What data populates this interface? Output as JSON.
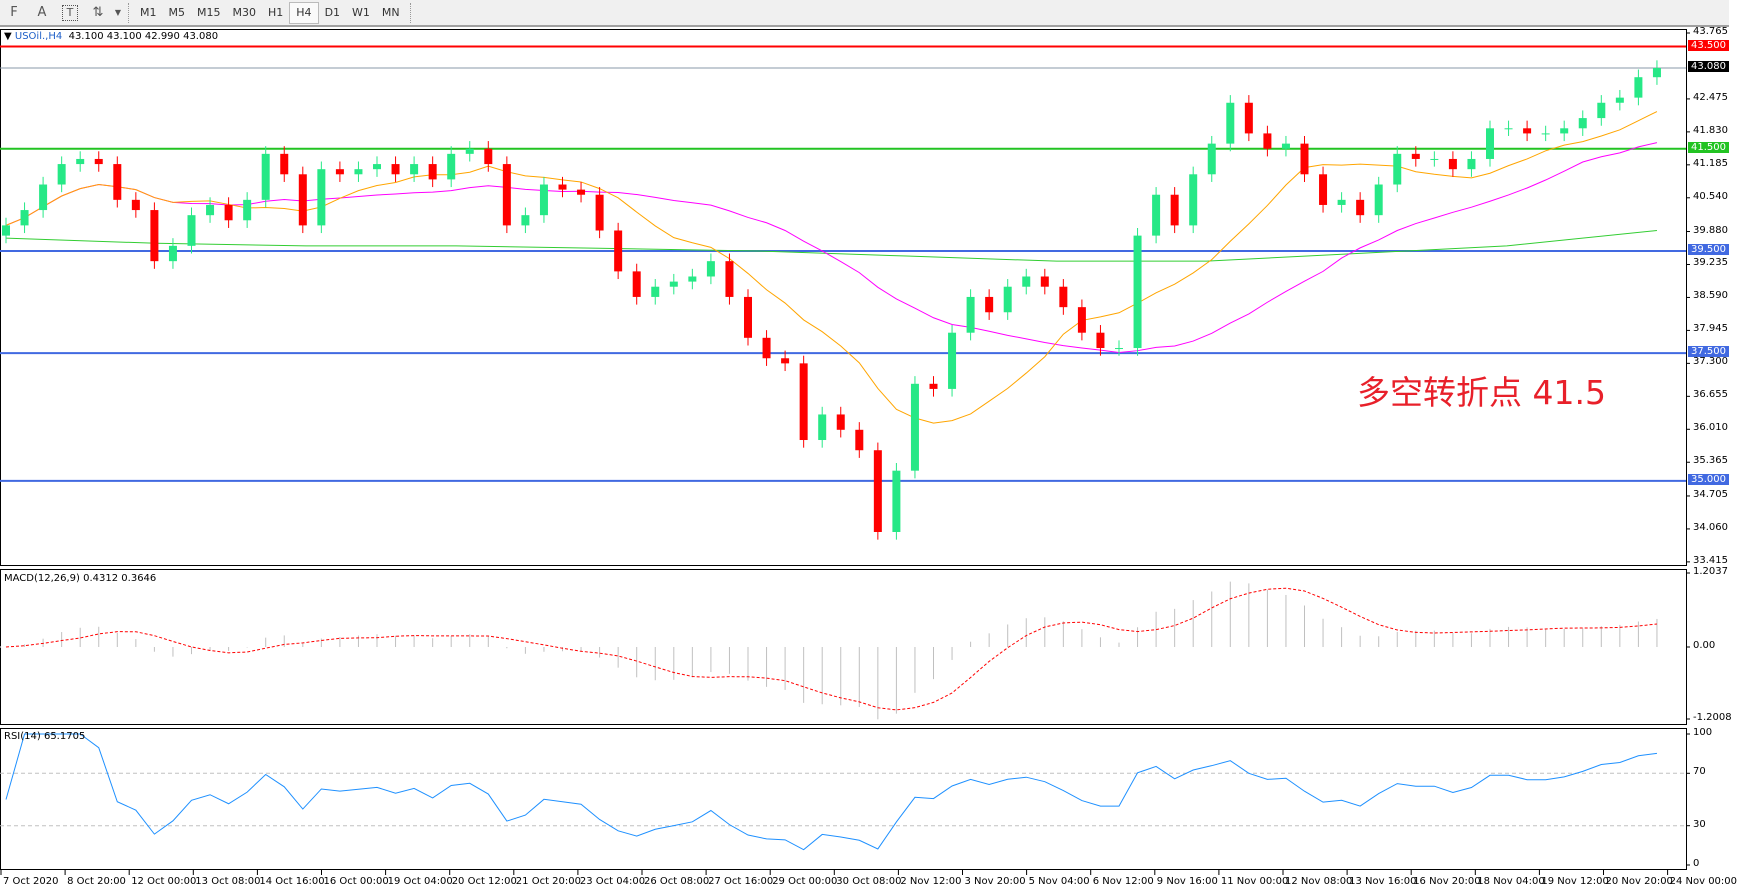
{
  "toolbar": {
    "tools": [
      {
        "name": "grid-f-icon",
        "glyph": "F"
      },
      {
        "name": "text-tool-icon",
        "glyph": "A"
      },
      {
        "name": "text-label-icon",
        "glyph": "T"
      },
      {
        "name": "arrows-tool-icon",
        "glyph": "⇅"
      }
    ],
    "timeframes": [
      "M1",
      "M5",
      "M15",
      "M30",
      "H1",
      "H4",
      "D1",
      "W1",
      "MN"
    ],
    "active_timeframe": "H4"
  },
  "main": {
    "symbol_label": "USOil.,H4",
    "ohlc": "43.100 43.100 42.990 43.080",
    "annotation": "多空转折点 41.5"
  },
  "macd": {
    "label": "MACD(12,26,9) 0.4312 0.3646",
    "scale": [
      "1.2037",
      "0.00",
      "-1.2008"
    ]
  },
  "rsi": {
    "label": "RSI(14) 65.1705",
    "scale": [
      "100",
      "70",
      "30",
      "0"
    ]
  },
  "colors": {
    "bull": "#26e886",
    "bear": "#ff0000",
    "ma_fast": "#ffa500",
    "ma_mid": "#ff00ff",
    "ma_long": "#32cd32",
    "rsi": "#1e90ff",
    "macd_signal": "#ff0000",
    "macd_hist": "#c0c0c0"
  },
  "chart_data": {
    "type": "candlestick",
    "ylim": [
      33.415,
      43.765
    ],
    "price_ticks": [
      "43.765",
      "42.475",
      "41.830",
      "41.185",
      "40.540",
      "39.880",
      "39.235",
      "38.590",
      "37.945",
      "37.300",
      "36.655",
      "36.010",
      "35.365",
      "34.705",
      "34.060",
      "33.415"
    ],
    "levels": [
      {
        "value": "43.500",
        "color": "#ff0000"
      },
      {
        "value": "43.080",
        "color": "#000000",
        "line": "#8a9aaa"
      },
      {
        "value": "41.500",
        "color": "#22c322"
      },
      {
        "value": "39.500",
        "color": "#4169e1"
      },
      {
        "value": "37.500",
        "color": "#4169e1"
      },
      {
        "value": "35.000",
        "color": "#4169e1"
      }
    ],
    "closes": [
      40.0,
      40.3,
      40.8,
      41.2,
      41.3,
      41.2,
      40.5,
      40.3,
      39.3,
      39.6,
      40.2,
      40.4,
      40.1,
      40.5,
      41.4,
      41.0,
      40.0,
      41.1,
      41.0,
      41.1,
      41.2,
      41.0,
      41.2,
      40.9,
      41.4,
      41.5,
      41.2,
      40.0,
      40.2,
      40.8,
      40.7,
      40.6,
      39.9,
      39.1,
      38.6,
      38.8,
      38.9,
      39.0,
      39.3,
      38.6,
      37.8,
      37.4,
      37.3,
      35.8,
      36.3,
      36.0,
      35.6,
      34.0,
      35.2,
      36.9,
      36.8,
      37.9,
      38.6,
      38.3,
      38.8,
      39.0,
      38.8,
      38.4,
      37.9,
      37.6,
      37.6,
      39.8,
      40.6,
      40.0,
      41.0,
      41.6,
      42.4,
      41.8,
      41.5,
      41.6,
      41.0,
      40.4,
      40.5,
      40.2,
      40.8,
      41.4,
      41.3,
      41.3,
      41.1,
      41.3,
      41.9,
      41.9,
      41.8,
      41.8,
      41.9,
      42.1,
      42.4,
      42.5,
      42.9,
      43.08
    ],
    "ma_long": [
      39.75,
      39.65,
      39.6,
      39.6,
      39.55,
      39.5,
      39.4,
      39.3,
      39.3,
      39.45,
      39.6,
      39.9
    ],
    "time_labels": [
      "7 Oct 2020",
      "8 Oct 20:00",
      "12 Oct 00:00",
      "13 Oct 08:00",
      "14 Oct 16:00",
      "16 Oct 00:00",
      "19 Oct 04:00",
      "20 Oct 12:00",
      "21 Oct 20:00",
      "23 Oct 04:00",
      "26 Oct 08:00",
      "27 Oct 16:00",
      "29 Oct 00:00",
      "30 Oct 08:00",
      "2 Nov 12:00",
      "3 Nov 20:00",
      "5 Nov 04:00",
      "6 Nov 12:00",
      "9 Nov 16:00",
      "11 Nov 00:00",
      "12 Nov 08:00",
      "13 Nov 16:00",
      "16 Nov 20:00",
      "18 Nov 04:00",
      "19 Nov 12:00",
      "20 Nov 20:00",
      "24 Nov 00:00"
    ]
  }
}
